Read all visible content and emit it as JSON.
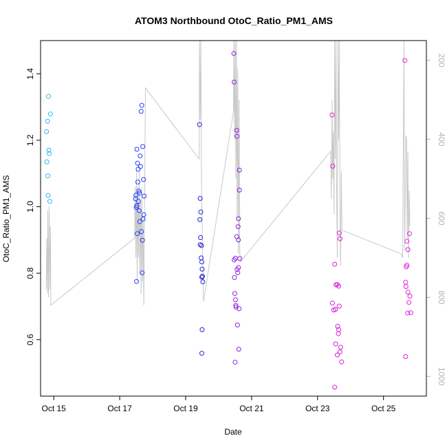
{
  "chart_data": {
    "type": "scatter",
    "title": "ATOM3 Northbound OtoC_Ratio_PM1_AMS",
    "xlabel": "Date",
    "ylabel": "OtoC_Ratio_PM1_AMS",
    "xlim": [
      14.6,
      26.3
    ],
    "ylim": [
      0.43,
      1.5
    ],
    "x_ticks": [
      {
        "v": 15,
        "label": "Oct 15"
      },
      {
        "v": 17,
        "label": "Oct 17"
      },
      {
        "v": 19,
        "label": "Oct 19"
      },
      {
        "v": 21,
        "label": "Oct 21"
      },
      {
        "v": 23,
        "label": "Oct 23"
      },
      {
        "v": 25,
        "label": "Oct 25"
      }
    ],
    "y_ticks": [
      0.6,
      0.8,
      1.0,
      1.2,
      1.4
    ],
    "y_tick_labels": [
      "0.6",
      "0.8",
      "1.0",
      "1.2",
      "1.4"
    ],
    "secondary_axis": {
      "range": [
        150,
        1050
      ],
      "reversed": true,
      "ticks": [
        200,
        400,
        600,
        800,
        1000
      ],
      "tick_labels": [
        "200",
        "400",
        "600",
        "800",
        "1000"
      ],
      "color": "#b3b3b3"
    },
    "grid": false,
    "marker": "open-circle",
    "color_map": [
      "#29b6f6",
      "#1e3cff",
      "#2020d0",
      "#8f20e0",
      "#d81bd8",
      "#e020e0"
    ],
    "points": [
      {
        "x": 14.78,
        "y": 1.226
      },
      {
        "x": 14.81,
        "y": 1.257
      },
      {
        "x": 14.79,
        "y": 1.135
      },
      {
        "x": 14.82,
        "y": 1.093
      },
      {
        "x": 14.85,
        "y": 1.17
      },
      {
        "x": 14.86,
        "y": 1.16
      },
      {
        "x": 14.84,
        "y": 1.332
      },
      {
        "x": 14.9,
        "y": 1.279
      },
      {
        "x": 14.83,
        "y": 1.034
      },
      {
        "x": 14.88,
        "y": 1.016
      },
      {
        "x": 17.48,
        "y": 1.024
      },
      {
        "x": 17.5,
        "y": 0.998
      },
      {
        "x": 17.49,
        "y": 1.035
      },
      {
        "x": 17.52,
        "y": 1.003
      },
      {
        "x": 17.52,
        "y": 1.173
      },
      {
        "x": 17.54,
        "y": 1.131
      },
      {
        "x": 17.56,
        "y": 1.113
      },
      {
        "x": 17.55,
        "y": 1.074
      },
      {
        "x": 17.58,
        "y": 1.047
      },
      {
        "x": 17.6,
        "y": 1.041
      },
      {
        "x": 17.62,
        "y": 1.153
      },
      {
        "x": 17.63,
        "y": 1.121
      },
      {
        "x": 17.57,
        "y": 1.016
      },
      {
        "x": 17.59,
        "y": 0.988
      },
      {
        "x": 17.53,
        "y": 0.919
      },
      {
        "x": 17.51,
        "y": 0.775
      },
      {
        "x": 17.65,
        "y": 1.287
      },
      {
        "x": 17.67,
        "y": 1.305
      },
      {
        "x": 17.7,
        "y": 1.181
      },
      {
        "x": 17.72,
        "y": 1.082
      },
      {
        "x": 17.74,
        "y": 1.032
      },
      {
        "x": 17.73,
        "y": 0.976
      },
      {
        "x": 17.71,
        "y": 0.963
      },
      {
        "x": 17.66,
        "y": 0.925
      },
      {
        "x": 17.69,
        "y": 0.899
      },
      {
        "x": 17.68,
        "y": 0.801
      },
      {
        "x": 17.61,
        "y": 0.955
      },
      {
        "x": 19.42,
        "y": 1.247
      },
      {
        "x": 19.44,
        "y": 1.025
      },
      {
        "x": 19.46,
        "y": 0.984
      },
      {
        "x": 19.43,
        "y": 0.961
      },
      {
        "x": 19.45,
        "y": 0.907
      },
      {
        "x": 19.44,
        "y": 0.886
      },
      {
        "x": 19.48,
        "y": 0.883
      },
      {
        "x": 19.47,
        "y": 0.846
      },
      {
        "x": 19.49,
        "y": 0.834
      },
      {
        "x": 19.5,
        "y": 0.812
      },
      {
        "x": 19.51,
        "y": 0.791
      },
      {
        "x": 19.49,
        "y": 0.788
      },
      {
        "x": 19.52,
        "y": 0.774
      },
      {
        "x": 19.5,
        "y": 0.63
      },
      {
        "x": 19.49,
        "y": 0.559
      },
      {
        "x": 20.46,
        "y": 1.461
      },
      {
        "x": 20.47,
        "y": 1.375
      },
      {
        "x": 20.55,
        "y": 1.23
      },
      {
        "x": 20.56,
        "y": 1.212
      },
      {
        "x": 20.63,
        "y": 1.11
      },
      {
        "x": 20.63,
        "y": 1.05
      },
      {
        "x": 20.6,
        "y": 0.964
      },
      {
        "x": 20.59,
        "y": 0.94
      },
      {
        "x": 20.55,
        "y": 0.91
      },
      {
        "x": 20.6,
        "y": 0.9
      },
      {
        "x": 20.51,
        "y": 0.845
      },
      {
        "x": 20.47,
        "y": 0.84
      },
      {
        "x": 20.64,
        "y": 0.844
      },
      {
        "x": 20.6,
        "y": 0.817
      },
      {
        "x": 20.56,
        "y": 0.811
      },
      {
        "x": 20.58,
        "y": 0.801
      },
      {
        "x": 20.48,
        "y": 0.787
      },
      {
        "x": 20.49,
        "y": 0.739
      },
      {
        "x": 20.51,
        "y": 0.72
      },
      {
        "x": 20.52,
        "y": 0.703
      },
      {
        "x": 20.53,
        "y": 0.698
      },
      {
        "x": 20.62,
        "y": 0.693
      },
      {
        "x": 20.57,
        "y": 0.644
      },
      {
        "x": 20.61,
        "y": 0.571
      },
      {
        "x": 20.5,
        "y": 0.532
      },
      {
        "x": 23.44,
        "y": 1.276
      },
      {
        "x": 23.46,
        "y": 1.122
      },
      {
        "x": 23.52,
        "y": 0.827
      },
      {
        "x": 23.56,
        "y": 0.765
      },
      {
        "x": 23.6,
        "y": 0.766
      },
      {
        "x": 23.64,
        "y": 0.761
      },
      {
        "x": 23.66,
        "y": 0.921
      },
      {
        "x": 23.68,
        "y": 0.904
      },
      {
        "x": 23.45,
        "y": 0.71
      },
      {
        "x": 23.49,
        "y": 0.689
      },
      {
        "x": 23.54,
        "y": 0.691
      },
      {
        "x": 23.66,
        "y": 0.701
      },
      {
        "x": 23.61,
        "y": 0.64
      },
      {
        "x": 23.64,
        "y": 0.63
      },
      {
        "x": 23.63,
        "y": 0.618
      },
      {
        "x": 23.55,
        "y": 0.587
      },
      {
        "x": 23.7,
        "y": 0.577
      },
      {
        "x": 23.68,
        "y": 0.563
      },
      {
        "x": 23.6,
        "y": 0.554
      },
      {
        "x": 23.73,
        "y": 0.533
      },
      {
        "x": 23.52,
        "y": 0.457
      },
      {
        "x": 25.65,
        "y": 1.44
      },
      {
        "x": 25.79,
        "y": 0.919
      },
      {
        "x": 25.71,
        "y": 0.896
      },
      {
        "x": 25.74,
        "y": 0.871
      },
      {
        "x": 25.71,
        "y": 0.824
      },
      {
        "x": 25.69,
        "y": 0.819
      },
      {
        "x": 25.67,
        "y": 0.773
      },
      {
        "x": 25.68,
        "y": 0.76
      },
      {
        "x": 25.74,
        "y": 0.743
      },
      {
        "x": 25.8,
        "y": 0.731
      },
      {
        "x": 25.77,
        "y": 0.712
      },
      {
        "x": 25.73,
        "y": 0.68
      },
      {
        "x": 25.83,
        "y": 0.681
      },
      {
        "x": 25.67,
        "y": 0.549
      }
    ],
    "secondary_series": {
      "color": "#c8c8c8",
      "points": [
        [
          14.77,
          780
        ],
        [
          14.79,
          650
        ],
        [
          14.81,
          790
        ],
        [
          14.82,
          580
        ],
        [
          14.84,
          800
        ],
        [
          14.86,
          570
        ],
        [
          14.88,
          780
        ],
        [
          14.9,
          620
        ],
        [
          14.91,
          820
        ],
        [
          17.45,
          650
        ],
        [
          17.47,
          520
        ],
        [
          17.49,
          700
        ],
        [
          17.51,
          480
        ],
        [
          17.53,
          760
        ],
        [
          17.55,
          520
        ],
        [
          17.57,
          700
        ],
        [
          17.59,
          480
        ],
        [
          17.61,
          740
        ],
        [
          17.63,
          560
        ],
        [
          17.65,
          790
        ],
        [
          17.67,
          520
        ],
        [
          17.69,
          760
        ],
        [
          17.71,
          600
        ],
        [
          17.73,
          820
        ],
        [
          17.78,
          270
        ],
        [
          19.41,
          450
        ],
        [
          19.42,
          150
        ],
        [
          19.44,
          350
        ],
        [
          19.46,
          150
        ],
        [
          19.48,
          500
        ],
        [
          19.5,
          600
        ],
        [
          19.52,
          720
        ],
        [
          19.54,
          810
        ],
        [
          20.45,
          330
        ],
        [
          20.46,
          150
        ],
        [
          20.48,
          400
        ],
        [
          20.5,
          150
        ],
        [
          20.52,
          500
        ],
        [
          20.54,
          150
        ],
        [
          20.56,
          600
        ],
        [
          20.58,
          220
        ],
        [
          20.6,
          690
        ],
        [
          20.62,
          300
        ],
        [
          20.64,
          680
        ],
        [
          20.66,
          710
        ],
        [
          23.4,
          430
        ],
        [
          23.42,
          550
        ],
        [
          23.44,
          300
        ],
        [
          23.46,
          500
        ],
        [
          23.48,
          380
        ],
        [
          23.5,
          590
        ],
        [
          23.52,
          150
        ],
        [
          23.54,
          450
        ],
        [
          23.56,
          150
        ],
        [
          23.58,
          550
        ],
        [
          23.6,
          700
        ],
        [
          23.62,
          150
        ],
        [
          23.64,
          400
        ],
        [
          23.66,
          150
        ],
        [
          23.68,
          600
        ],
        [
          23.7,
          720
        ],
        [
          23.72,
          480
        ],
        [
          23.74,
          630
        ],
        [
          25.54,
          690
        ],
        [
          25.58,
          700
        ],
        [
          25.6,
          450
        ],
        [
          25.62,
          150
        ],
        [
          25.64,
          680
        ],
        [
          25.66,
          560
        ],
        [
          25.68,
          390
        ],
        [
          25.7,
          400
        ],
        [
          25.72,
          650
        ],
        [
          25.74,
          430
        ],
        [
          25.76,
          700
        ],
        [
          25.78,
          530
        ],
        [
          25.8,
          620
        ]
      ]
    }
  }
}
